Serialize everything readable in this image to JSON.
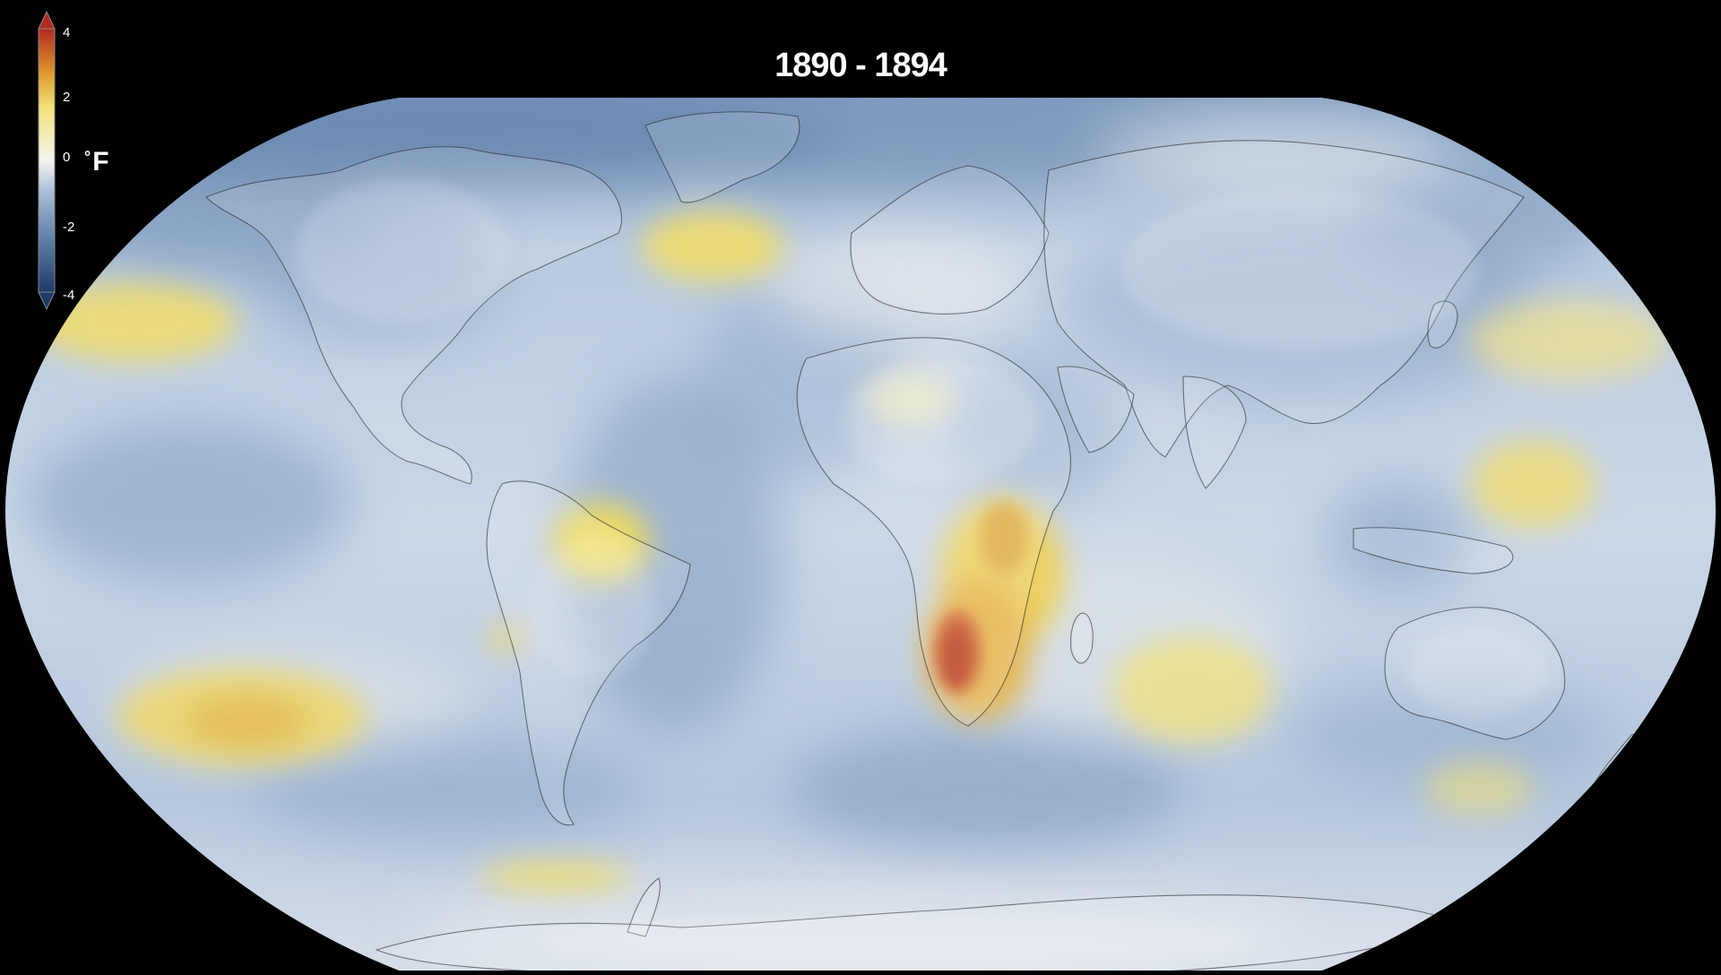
{
  "title": "1890 - 1894",
  "legend": {
    "unit_degree": "°",
    "unit_letter": "F",
    "ticks": [
      "4",
      "2",
      "0",
      "-2",
      "-4"
    ],
    "colors": {
      "max": "#b22a1e",
      "warm_mid": "#e0a030",
      "warm_low": "#f2e27a",
      "neutral": "#f4f4f0",
      "cool_low": "#a9bdd6",
      "cool_mid": "#5f7fa8",
      "min": "#1f3a6b"
    }
  },
  "map": {
    "projection": "robinson",
    "ocean_base_color": "#c2d2e4",
    "anomaly_regions": [
      {
        "name": "southern-africa",
        "value": 3.8
      },
      {
        "name": "eastern-africa",
        "value": 1.8
      },
      {
        "name": "amazon",
        "value": 1.5
      },
      {
        "name": "north-atlantic",
        "value": 1.4
      },
      {
        "name": "north-pacific",
        "value": 1.3
      },
      {
        "name": "south-pacific",
        "value": 1.6
      },
      {
        "name": "western-pacific",
        "value": 1.2
      },
      {
        "name": "indian-ocean",
        "value": 1.0
      },
      {
        "name": "southern-ocean",
        "value": 1.1
      },
      {
        "name": "greenland",
        "value": -2.6
      },
      {
        "name": "arctic",
        "value": -2.2
      },
      {
        "name": "north-america",
        "value": -1.4
      },
      {
        "name": "siberia",
        "value": -1.6
      },
      {
        "name": "south-atlantic",
        "value": -1.3
      },
      {
        "name": "east-pacific",
        "value": -1.2
      }
    ]
  }
}
